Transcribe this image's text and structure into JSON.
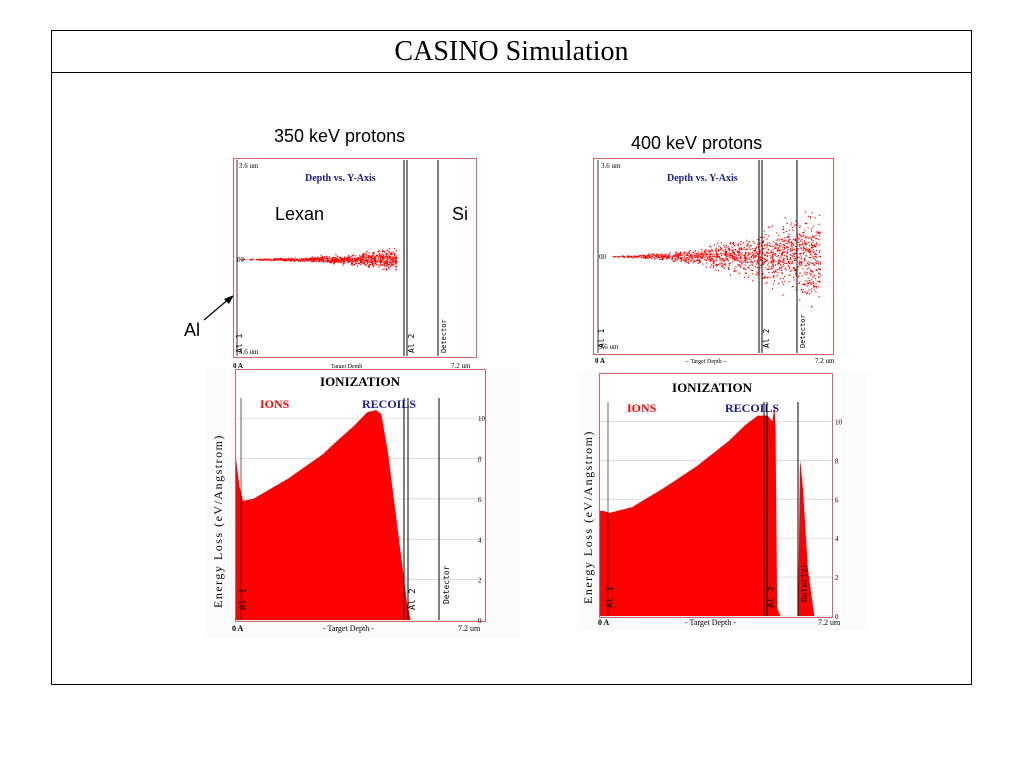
{
  "page": {
    "title": "CASINO Simulation"
  },
  "panels": [
    {
      "heading": "350 keV protons",
      "scatter": {
        "title": "Depth vs. Y-Axis",
        "top_label": "3.6 um",
        "zero_label": "00",
        "bottom_label": "3.6 um",
        "x_start": "0 A",
        "x_label": "Target Depth",
        "x_end": "7.2 um",
        "material_left": "Lexan",
        "material_right": "Si",
        "layer_left": "Al 1",
        "layer_mid": "Al 2",
        "layer_right": "Detector"
      },
      "ionization": {
        "title": "IONIZATION",
        "ions_label": "IONS",
        "recoils_label": "RECOILS",
        "ylabel": "Energy Loss (eV/Angstrom)",
        "x_start": "0 A",
        "x_label": "- Target Depth -",
        "x_end": "7.2 um",
        "yticks": [
          "0",
          "2",
          "4",
          "6",
          "8",
          "10"
        ],
        "layer_left": "Al 1",
        "layer_mid": "Al 2",
        "layer_right": "Detector"
      }
    },
    {
      "heading": "400 keV protons",
      "scatter": {
        "title": "Depth vs. Y-Axis",
        "top_label": "3.6 um",
        "zero_label": "00",
        "bottom_label": "3.6 um",
        "x_start": "0 A",
        "x_label": "-- Target Depth --",
        "x_end": "7.2 um",
        "layer_left": "Al 1",
        "layer_mid": "Al 2",
        "layer_right": "Detector"
      },
      "ionization": {
        "title": "IONIZATION",
        "ions_label": "IONS",
        "recoils_label": "RECOILS",
        "ylabel": "Energy Loss (eV/Angstrom)",
        "x_start": "0 A",
        "x_label": "- Target Depth -",
        "x_end": "7.2 um",
        "yticks": [
          "0",
          "2",
          "4",
          "6",
          "8",
          "10"
        ],
        "layer_left": "Al 1",
        "layer_mid": "Al 2",
        "layer_right": "Detector"
      }
    }
  ],
  "annotation": {
    "label": "Al"
  },
  "colors": {
    "ions": "#ff0000",
    "recoils": "#1a1a99",
    "scatter_points": "#ff0000",
    "frame": "#cc6666"
  },
  "chart_data": [
    {
      "type": "scatter",
      "title": "Depth vs. Y-Axis",
      "xlabel": "Target Depth",
      "xlim": [
        0,
        7.2
      ],
      "ylim": [
        -3.6,
        3.6
      ],
      "annotations": [
        "Lexan",
        "Si",
        "Al 1",
        "Al 2",
        "Detector"
      ],
      "series": [
        {
          "name": "",
          "x": [
            0.1,
            1.0,
            2.0,
            3.0,
            4.0,
            4.5,
            4.8
          ],
          "y": [
            0,
            0,
            0.02,
            -0.05,
            0.1,
            0.2,
            0
          ]
        }
      ]
    },
    {
      "type": "area",
      "title": "IONIZATION",
      "ylabel": "Energy Loss (eV/Angstrom)",
      "xlabel": "- Target Depth -",
      "xlim": [
        0,
        7.2
      ],
      "ylim": [
        0,
        11
      ],
      "x": [
        0.0,
        0.1,
        0.2,
        0.5,
        1.0,
        1.5,
        2.0,
        2.5,
        3.0,
        3.4,
        3.8,
        4.05,
        4.2,
        4.4,
        4.6,
        4.8,
        4.95,
        5.05
      ],
      "series": [
        {
          "name": "IONS",
          "values": [
            8.0,
            6.6,
            5.9,
            6.0,
            6.5,
            7.0,
            7.6,
            8.2,
            9.0,
            9.6,
            10.3,
            10.4,
            10.2,
            8.2,
            5.5,
            2.8,
            0.8,
            0.0
          ]
        }
      ]
    },
    {
      "type": "scatter",
      "title": "Depth vs. Y-Axis",
      "xlabel": "-- Target Depth --",
      "xlim": [
        0,
        7.2
      ],
      "ylim": [
        -3.6,
        3.6
      ],
      "annotations": [
        "Al 1",
        "Al 2",
        "Detector"
      ],
      "series": [
        {
          "name": "",
          "x": [
            0.1,
            1.5,
            3.0,
            4.5,
            5.5,
            6.3,
            6.8
          ],
          "y": [
            0,
            0.05,
            -0.1,
            0.2,
            0.3,
            0.8,
            0
          ]
        }
      ]
    },
    {
      "type": "area",
      "title": "IONIZATION",
      "ylabel": "Energy Loss (eV/Angstrom)",
      "xlabel": "- Target Depth -",
      "xlim": [
        0,
        7.2
      ],
      "ylim": [
        0,
        11
      ],
      "x": [
        0.0,
        0.1,
        0.3,
        1.0,
        2.0,
        3.0,
        4.0,
        4.5,
        4.9,
        5.2,
        5.35,
        5.42,
        5.45,
        5.47,
        5.5,
        5.6,
        5.62,
        6.15,
        6.2,
        6.22,
        6.3,
        6.45,
        6.6,
        6.65
      ],
      "series": [
        {
          "name": "IONS",
          "values": [
            5.4,
            5.4,
            5.3,
            5.6,
            6.6,
            7.7,
            9.0,
            9.8,
            10.3,
            10.3,
            10.0,
            10.8,
            9.5,
            5.0,
            0.4,
            0.0,
            0.0,
            0.0,
            7.5,
            8.0,
            6.5,
            2.5,
            0.6,
            0.0
          ]
        }
      ]
    }
  ]
}
